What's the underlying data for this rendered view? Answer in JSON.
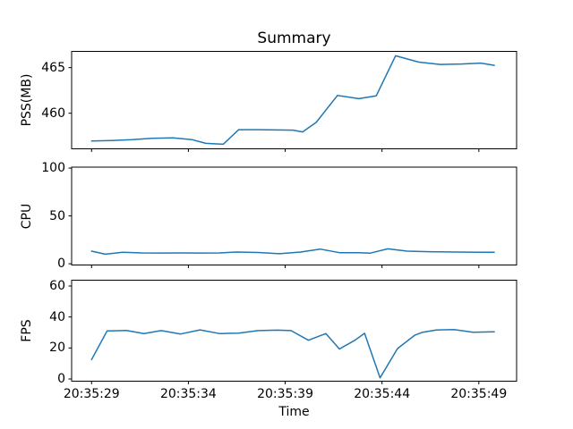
{
  "figure": {
    "title": "Summary",
    "xlabel": "Time",
    "background_color": "#ffffff",
    "line_color": "#1f77b4",
    "spine_color": "#000000",
    "text_color": "#000000"
  },
  "chart_data": {
    "type": "line",
    "title": "Summary",
    "xlabel": "Time",
    "grid": false,
    "legend": false,
    "x_unit": "seconds after 20:35:29",
    "xlim": [
      -1.03,
      21.95
    ],
    "x_ticks": {
      "seconds": [
        0,
        5,
        10,
        15,
        20
      ],
      "labels": [
        "20:35:29",
        "20:35:34",
        "20:35:39",
        "20:35:44",
        "20:35:49"
      ]
    },
    "subplots": [
      {
        "ylabel": "PSS(MB)",
        "ylim": [
          456.1,
          466.78
        ],
        "yticks": [
          460,
          465
        ],
        "ytick_labels": [
          "460",
          "465"
        ],
        "x": [
          0,
          1.0,
          2.1,
          3.1,
          4.2,
          5.2,
          5.9,
          6.8,
          7.6,
          8.7,
          10.4,
          10.9,
          11.6,
          12.7,
          13.8,
          14.7,
          15.7,
          16.9,
          18.0,
          19.1,
          20.1,
          20.8
        ],
        "values": [
          456.95,
          457.0,
          457.1,
          457.25,
          457.3,
          457.1,
          456.7,
          456.6,
          458.2,
          458.2,
          458.15,
          457.95,
          459.0,
          461.95,
          461.6,
          461.9,
          466.3,
          465.6,
          465.35,
          465.4,
          465.5,
          465.25
        ]
      },
      {
        "ylabel": "CPU",
        "ylim": [
          -1.3,
          101.0
        ],
        "yticks": [
          0,
          50,
          100
        ],
        "ytick_labels": [
          "0",
          "50",
          "100"
        ],
        "x": [
          0,
          0.7,
          1.6,
          2.6,
          3.6,
          4.6,
          5.6,
          6.6,
          7.5,
          8.6,
          9.7,
          10.8,
          11.8,
          12.8,
          13.8,
          14.4,
          15.3,
          16.3,
          17.4,
          18.9,
          20.0,
          20.8
        ],
        "values": [
          13.2,
          10.0,
          12.0,
          11.3,
          11.2,
          11.3,
          11.2,
          11.3,
          12.2,
          11.8,
          10.5,
          12.2,
          15.3,
          11.6,
          11.5,
          11.1,
          15.6,
          13.2,
          12.6,
          12.2,
          12.1,
          12.0
        ]
      },
      {
        "ylabel": "FPS",
        "ylim": [
          -1.44,
          63.75
        ],
        "yticks": [
          0,
          20,
          40,
          60
        ],
        "ytick_labels": [
          "0",
          "20",
          "40",
          "60"
        ],
        "x": [
          0,
          0.8,
          1.8,
          2.7,
          3.6,
          4.6,
          5.6,
          6.6,
          7.6,
          8.6,
          9.6,
          10.3,
          11.2,
          12.1,
          12.8,
          13.6,
          14.1,
          14.9,
          15.8,
          16.7,
          17.1,
          17.8,
          18.7,
          19.7,
          20.8
        ],
        "values": [
          12.5,
          31.0,
          31.3,
          29.3,
          31.2,
          29.0,
          31.7,
          29.3,
          29.6,
          31.2,
          31.5,
          31.2,
          25.0,
          29.3,
          19.3,
          25.0,
          29.5,
          0.7,
          19.6,
          28.3,
          30.2,
          31.6,
          31.9,
          30.2,
          30.4
        ]
      }
    ]
  }
}
